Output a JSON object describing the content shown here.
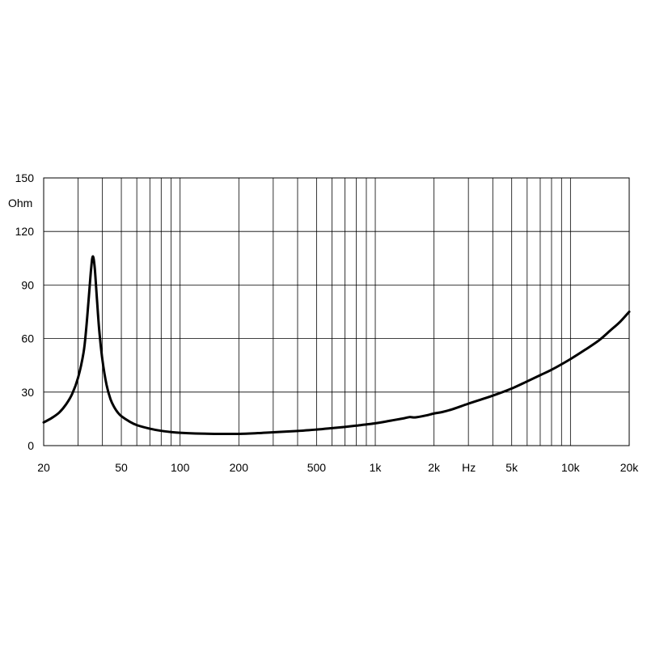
{
  "chart_data": {
    "type": "line",
    "x_scale": "log",
    "xlim": [
      20,
      20000
    ],
    "ylim": [
      0,
      150
    ],
    "ylabel": "Ohm",
    "xunit": "Hz",
    "grid": true,
    "x_ticks": [
      {
        "value": 20,
        "label": "20"
      },
      {
        "value": 50,
        "label": "50"
      },
      {
        "value": 100,
        "label": "100"
      },
      {
        "value": 200,
        "label": "200"
      },
      {
        "value": 500,
        "label": "500"
      },
      {
        "value": 1000,
        "label": "1k"
      },
      {
        "value": 2000,
        "label": "2k"
      },
      {
        "value": 5000,
        "label": "5k"
      },
      {
        "value": 10000,
        "label": "10k"
      },
      {
        "value": 20000,
        "label": "20k"
      }
    ],
    "y_ticks": [
      {
        "value": 0,
        "label": "0"
      },
      {
        "value": 30,
        "label": "30"
      },
      {
        "value": 60,
        "label": "60"
      },
      {
        "value": 90,
        "label": "90"
      },
      {
        "value": 120,
        "label": "120"
      },
      {
        "value": 150,
        "label": "150"
      }
    ],
    "x_gridlines": [
      20,
      30,
      40,
      50,
      60,
      70,
      80,
      90,
      100,
      200,
      300,
      400,
      500,
      600,
      700,
      800,
      900,
      1000,
      2000,
      3000,
      4000,
      5000,
      6000,
      7000,
      8000,
      9000,
      10000,
      20000
    ],
    "series": [
      {
        "color": "#000000",
        "points": [
          [
            20,
            13
          ],
          [
            22,
            15.5
          ],
          [
            24,
            18.5
          ],
          [
            26,
            23
          ],
          [
            28,
            29
          ],
          [
            30,
            38
          ],
          [
            32,
            52
          ],
          [
            33,
            65
          ],
          [
            34,
            82
          ],
          [
            35,
            99
          ],
          [
            35.7,
            106
          ],
          [
            36.5,
            100
          ],
          [
            37.5,
            82
          ],
          [
            38.5,
            65
          ],
          [
            40,
            48
          ],
          [
            42,
            34
          ],
          [
            44,
            26
          ],
          [
            46,
            21.5
          ],
          [
            48,
            18.5
          ],
          [
            50,
            16.5
          ],
          [
            55,
            13.5
          ],
          [
            60,
            11.5
          ],
          [
            70,
            9.5
          ],
          [
            80,
            8.3
          ],
          [
            90,
            7.6
          ],
          [
            100,
            7.2
          ],
          [
            120,
            6.8
          ],
          [
            150,
            6.6
          ],
          [
            200,
            6.6
          ],
          [
            250,
            7.0
          ],
          [
            300,
            7.5
          ],
          [
            400,
            8.2
          ],
          [
            500,
            9.0
          ],
          [
            600,
            9.8
          ],
          [
            700,
            10.5
          ],
          [
            800,
            11.2
          ],
          [
            1000,
            12.5
          ],
          [
            1200,
            14.0
          ],
          [
            1400,
            15.3
          ],
          [
            1500,
            16.0
          ],
          [
            1600,
            15.8
          ],
          [
            1800,
            16.8
          ],
          [
            2000,
            18.0
          ],
          [
            2200,
            18.8
          ],
          [
            2500,
            20.5
          ],
          [
            3000,
            23.5
          ],
          [
            4000,
            28.0
          ],
          [
            5000,
            32.0
          ],
          [
            6000,
            36.0
          ],
          [
            7000,
            39.5
          ],
          [
            8000,
            42.5
          ],
          [
            10000,
            48.5
          ],
          [
            12000,
            54.0
          ],
          [
            14000,
            59.0
          ],
          [
            16000,
            64.5
          ],
          [
            18000,
            69.5
          ],
          [
            20000,
            75
          ]
        ]
      }
    ]
  }
}
